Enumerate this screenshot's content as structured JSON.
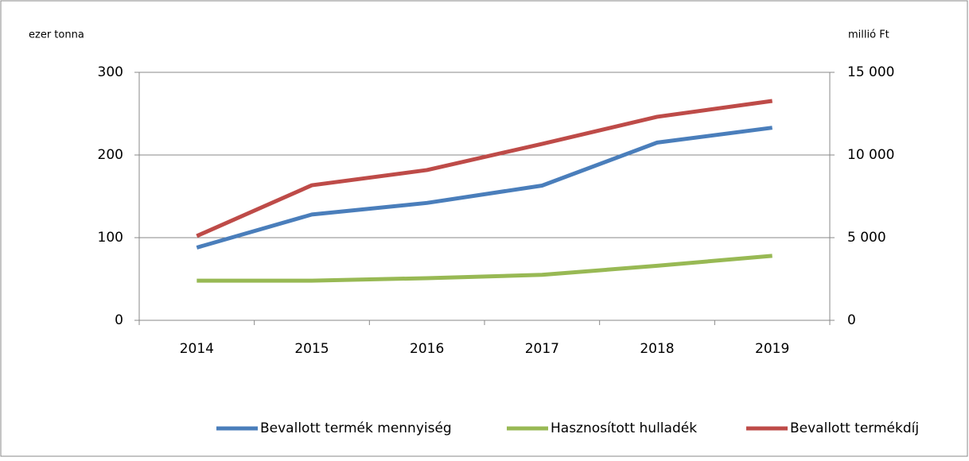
{
  "chart_data": {
    "type": "line",
    "y_label": "ezer tonna",
    "y2_label": "millió Ft",
    "categories": [
      "2014",
      "2015",
      "2016",
      "2017",
      "2018",
      "2019"
    ],
    "series": [
      {
        "name": "Bevallott termék mennyiség",
        "color": "#4a7ebb",
        "values": [
          88,
          128,
          142,
          163,
          215,
          233
        ]
      },
      {
        "name": "Hasznosított hulladék",
        "color": "#98b954",
        "values": [
          48,
          48,
          51,
          55,
          66,
          78
        ]
      },
      {
        "name": "Bevallott termékdíj",
        "color": "#be4b48",
        "axis": "y2",
        "values": [
          5100,
          8170,
          9090,
          10670,
          12310,
          13270
        ]
      }
    ],
    "ylim": [
      0,
      300
    ],
    "yticks": [
      0,
      100,
      200,
      300
    ],
    "y2lim": [
      0,
      15000
    ],
    "y2ticks": [
      0,
      {
        "value": 5000,
        "label": "5 000"
      },
      {
        "value": 10000,
        "label": "10 000"
      },
      {
        "value": 15000,
        "label": "15 000"
      }
    ],
    "grid": true,
    "legend": "bottom"
  }
}
